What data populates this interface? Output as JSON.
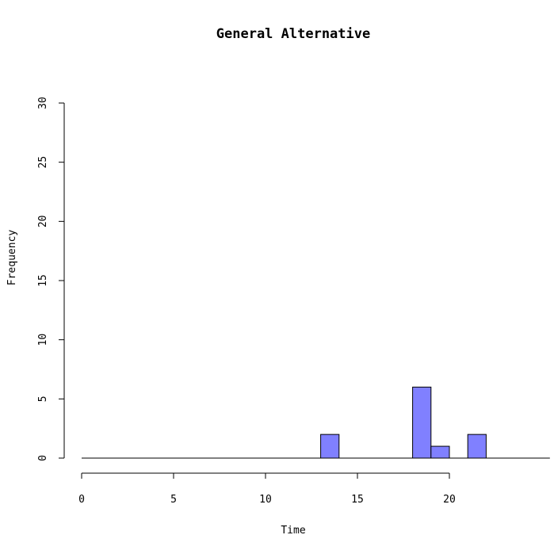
{
  "chart_data": {
    "type": "bar",
    "subtype": "histogram",
    "title": "General Alternative",
    "xlabel": "Time",
    "ylabel": "Frequency",
    "xlim": [
      0,
      24
    ],
    "ylim": [
      0,
      30
    ],
    "x_ticks": [
      0,
      5,
      10,
      15,
      20
    ],
    "y_ticks": [
      0,
      5,
      10,
      15,
      20,
      25,
      30
    ],
    "bin_width": 1,
    "bins": [
      {
        "start": 0,
        "end": 1,
        "count": 0
      },
      {
        "start": 1,
        "end": 2,
        "count": 0
      },
      {
        "start": 2,
        "end": 3,
        "count": 0
      },
      {
        "start": 3,
        "end": 4,
        "count": 0
      },
      {
        "start": 4,
        "end": 5,
        "count": 0
      },
      {
        "start": 5,
        "end": 6,
        "count": 0
      },
      {
        "start": 6,
        "end": 7,
        "count": 0
      },
      {
        "start": 7,
        "end": 8,
        "count": 0
      },
      {
        "start": 8,
        "end": 9,
        "count": 0
      },
      {
        "start": 9,
        "end": 10,
        "count": 0
      },
      {
        "start": 10,
        "end": 11,
        "count": 0
      },
      {
        "start": 11,
        "end": 12,
        "count": 0
      },
      {
        "start": 12,
        "end": 13,
        "count": 0
      },
      {
        "start": 13,
        "end": 14,
        "count": 2
      },
      {
        "start": 14,
        "end": 15,
        "count": 0
      },
      {
        "start": 15,
        "end": 16,
        "count": 0
      },
      {
        "start": 16,
        "end": 17,
        "count": 0
      },
      {
        "start": 17,
        "end": 18,
        "count": 0
      },
      {
        "start": 18,
        "end": 19,
        "count": 6
      },
      {
        "start": 19,
        "end": 20,
        "count": 1
      },
      {
        "start": 20,
        "end": 21,
        "count": 0
      },
      {
        "start": 21,
        "end": 22,
        "count": 2
      },
      {
        "start": 22,
        "end": 23,
        "count": 0
      },
      {
        "start": 23,
        "end": 24,
        "count": 0
      }
    ],
    "grid": false,
    "legend": "none",
    "colors": {
      "bar_fill": "#8080ff",
      "bar_stroke": "#000000"
    }
  }
}
